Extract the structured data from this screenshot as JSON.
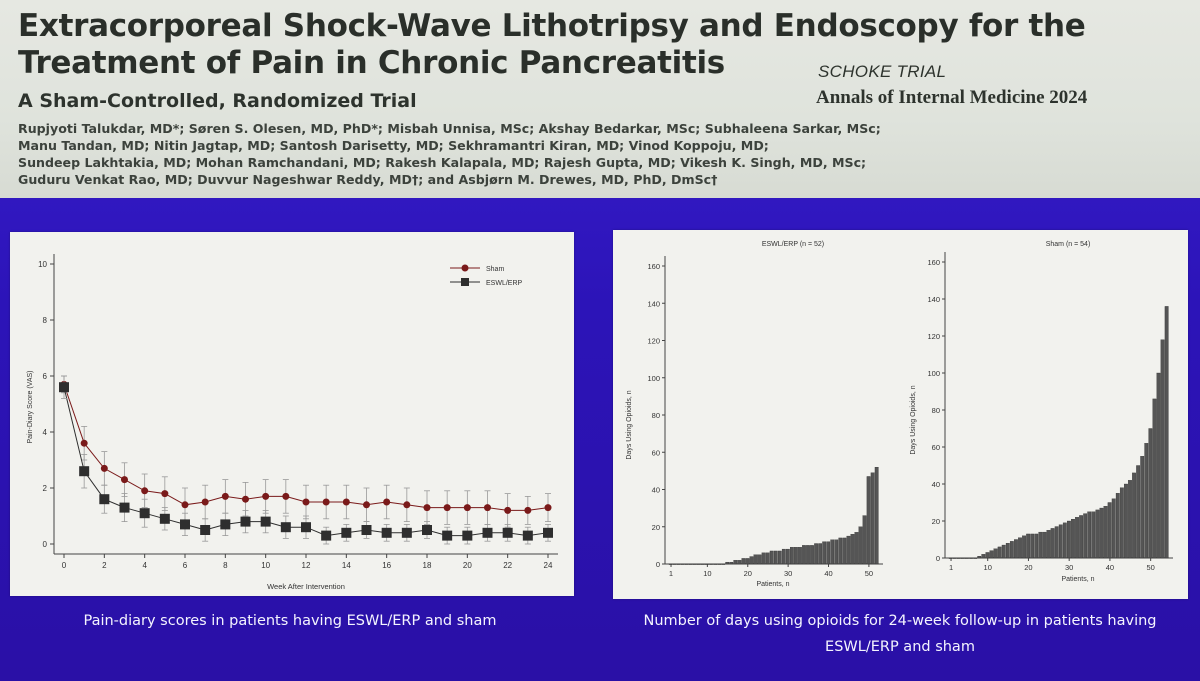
{
  "header": {
    "title_line1": "Extracorporeal Shock-Wave Lithotripsy and Endoscopy for the",
    "title_line2": "Treatment of Pain in Chronic Pancreatitis",
    "subtitle": "A Sham-Controlled, Randomized Trial",
    "trial_name": "SCHOKE TRIAL",
    "journal": "Annals of Internal Medicine 2024",
    "authors": [
      "Rupjyoti Talukdar, MD*; Søren S. Olesen, MD, PhD*; Misbah Unnisa, MSc; Akshay Bedarkar, MSc; Subhaleena Sarkar, MSc;",
      "Manu Tandan, MD; Nitin Jagtap, MD; Santosh Darisetty, MD; Sekhramantri Kiran, MD; Vinod Koppoju, MD;",
      "Sundeep Lakhtakia, MD; Mohan Ramchandani, MD; Rakesh Kalapala, MD; Rajesh Gupta, MD; Vikesh K. Singh, MD, MSc;",
      "Guduru Venkat Rao, MD; Duvvur Nageshwar Reddy, MD†; and Asbjørn M. Drewes, MD, PhD, DmSc†"
    ]
  },
  "captions": {
    "left": "Pain-diary scores in patients having ESWL/ERP and sham",
    "right": "Number of days using opioids for 24-week follow-up in patients having ESWL/ERP and sham"
  },
  "colors": {
    "sham": "#7a1a1a",
    "eswl": "#2e2e2e",
    "bars": "#555555"
  },
  "chart_data": [
    {
      "type": "line",
      "xlabel": "Week After Intervention",
      "ylabel": "Pain-Diary Score (VAS)",
      "xlim": [
        0,
        24
      ],
      "ylim": [
        0,
        10
      ],
      "xticks": [
        0,
        2,
        4,
        6,
        8,
        10,
        12,
        14,
        16,
        18,
        20,
        22,
        24
      ],
      "yticks": [
        0,
        2,
        4,
        6,
        8,
        10
      ],
      "legend": "top-right",
      "series": [
        {
          "name": "Sham",
          "marker": "circle",
          "x": [
            0,
            1,
            2,
            3,
            4,
            5,
            6,
            7,
            8,
            9,
            10,
            11,
            12,
            13,
            14,
            15,
            16,
            17,
            18,
            19,
            20,
            21,
            22,
            23,
            24
          ],
          "values": [
            5.7,
            3.6,
            2.7,
            2.3,
            1.9,
            1.8,
            1.4,
            1.5,
            1.7,
            1.6,
            1.7,
            1.7,
            1.5,
            1.5,
            1.5,
            1.4,
            1.5,
            1.4,
            1.3,
            1.3,
            1.3,
            1.3,
            1.2,
            1.2,
            1.3
          ],
          "err": [
            0.3,
            0.6,
            0.6,
            0.6,
            0.6,
            0.6,
            0.6,
            0.6,
            0.6,
            0.6,
            0.6,
            0.6,
            0.6,
            0.6,
            0.6,
            0.6,
            0.6,
            0.6,
            0.6,
            0.6,
            0.6,
            0.6,
            0.6,
            0.5,
            0.5
          ]
        },
        {
          "name": "ESWL/ERP",
          "marker": "square",
          "x": [
            0,
            1,
            2,
            3,
            4,
            5,
            6,
            7,
            8,
            9,
            10,
            11,
            12,
            13,
            14,
            15,
            16,
            17,
            18,
            19,
            20,
            21,
            22,
            23,
            24
          ],
          "values": [
            5.6,
            2.6,
            1.6,
            1.3,
            1.1,
            0.9,
            0.7,
            0.5,
            0.7,
            0.8,
            0.8,
            0.6,
            0.6,
            0.3,
            0.4,
            0.5,
            0.4,
            0.4,
            0.5,
            0.3,
            0.3,
            0.4,
            0.4,
            0.3,
            0.4
          ],
          "err": [
            0.4,
            0.6,
            0.5,
            0.5,
            0.5,
            0.4,
            0.4,
            0.4,
            0.4,
            0.4,
            0.4,
            0.4,
            0.4,
            0.3,
            0.3,
            0.3,
            0.3,
            0.3,
            0.3,
            0.3,
            0.3,
            0.3,
            0.3,
            0.3,
            0.3
          ]
        }
      ]
    },
    {
      "type": "bar",
      "title": "ESWL/ERP (n = 52)",
      "xlabel": "Patients, n",
      "ylabel": "Days Using Opioids, n",
      "ylim": [
        0,
        160
      ],
      "yticks": [
        0,
        20,
        40,
        60,
        80,
        100,
        120,
        140,
        160
      ],
      "xticks": [
        1,
        10,
        20,
        30,
        40,
        50
      ],
      "values": [
        0,
        0,
        0,
        0,
        0,
        0,
        0,
        0,
        0,
        0,
        0,
        0,
        0,
        0,
        1,
        1,
        2,
        2,
        3,
        3,
        4,
        5,
        5,
        6,
        6,
        7,
        7,
        7,
        8,
        8,
        9,
        9,
        9,
        10,
        10,
        10,
        11,
        11,
        12,
        12,
        13,
        13,
        14,
        14,
        15,
        16,
        17,
        20,
        26,
        47,
        49,
        52
      ]
    },
    {
      "type": "bar",
      "title": "Sham (n = 54)",
      "xlabel": "Patients, n",
      "ylabel": "Days Using Opioids, n",
      "ylim": [
        0,
        160
      ],
      "yticks": [
        0,
        20,
        40,
        60,
        80,
        100,
        120,
        140,
        160
      ],
      "xticks": [
        1,
        10,
        20,
        30,
        40,
        50
      ],
      "values": [
        0,
        0,
        0,
        0,
        0,
        0,
        0,
        1,
        2,
        3,
        4,
        5,
        6,
        7,
        8,
        9,
        10,
        11,
        12,
        13,
        13,
        13,
        14,
        14,
        15,
        16,
        17,
        18,
        19,
        20,
        21,
        22,
        23,
        24,
        25,
        25,
        26,
        27,
        28,
        30,
        32,
        35,
        38,
        40,
        42,
        46,
        50,
        55,
        62,
        70,
        86,
        100,
        118,
        136
      ]
    }
  ]
}
